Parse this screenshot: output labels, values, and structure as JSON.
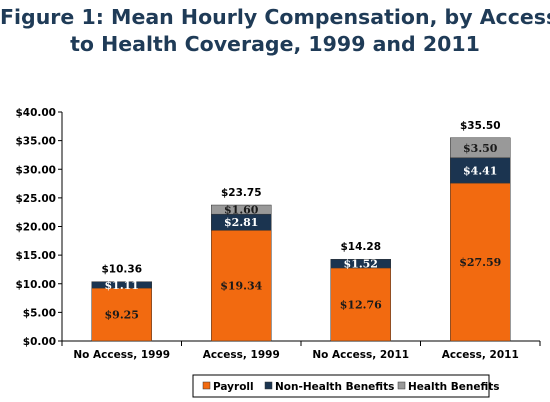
{
  "chart_data": {
    "type": "bar",
    "stacked": true,
    "title": "Figure 1: Mean Hourly Compensation, by Access to Health Coverage, 1999 and 2011",
    "title_lines": [
      "Figure 1: Mean Hourly Compensation, by Access",
      "to Health Coverage, 1999 and 2011"
    ],
    "categories": [
      "No Access, 1999",
      "Access, 1999",
      "No Access, 2011",
      "Access, 2011"
    ],
    "series": [
      {
        "name": "Payroll",
        "color": "#f26a10",
        "values": [
          9.25,
          19.34,
          12.76,
          27.59
        ],
        "labels": [
          "$9.25",
          "$19.34",
          "$12.76",
          "$27.59"
        ]
      },
      {
        "name": "Non-Health Benefits",
        "color": "#1b3450",
        "values": [
          1.11,
          2.81,
          1.52,
          4.41
        ],
        "labels": [
          "$1.11",
          "$2.81",
          "$1.52",
          "$4.41"
        ]
      },
      {
        "name": "Health Benefits",
        "color": "#999999",
        "values": [
          0,
          1.6,
          0,
          3.5
        ],
        "labels": [
          "",
          "$1.60",
          "",
          "$3.50"
        ]
      }
    ],
    "totals": [
      "$10.36",
      "$23.75",
      "$14.28",
      "$35.50"
    ],
    "total_values": [
      10.36,
      23.75,
      14.28,
      35.5
    ],
    "ylim": [
      0,
      40
    ],
    "yticks": [
      0,
      5,
      10,
      15,
      20,
      25,
      30,
      35,
      40
    ],
    "ytick_labels": [
      "$0.00",
      "$5.00",
      "$10.00",
      "$15.00",
      "$20.00",
      "$25.00",
      "$30.00",
      "$35.00",
      "$40.00"
    ],
    "xlabel": "",
    "ylabel": "",
    "grid": false,
    "legend": "bottom"
  }
}
